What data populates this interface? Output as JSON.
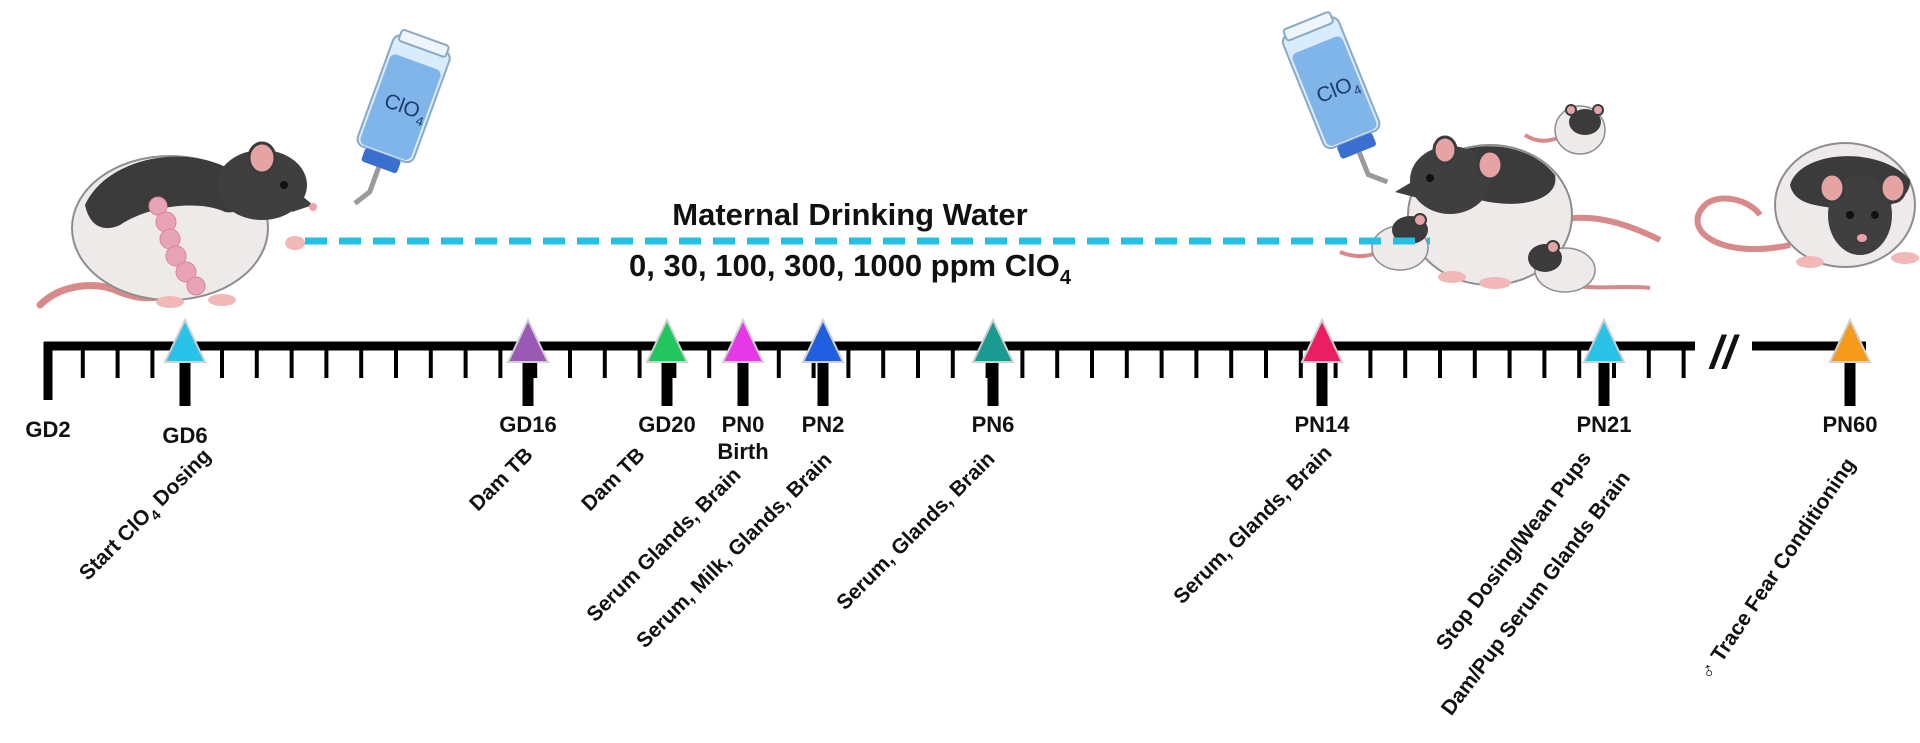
{
  "banner": {
    "title": "Maternal Drinking  Water",
    "doses": "0, 30, 100, 300, 1000 ppm ClO",
    "doses_sub": "4"
  },
  "bottle_label": "ClO",
  "bottle_label_sub": "4",
  "markers": [
    {
      "id": "gd2",
      "day": "GD2",
      "color": null
    },
    {
      "id": "gd6",
      "day": "GD6",
      "color": "#29c3ea"
    },
    {
      "id": "gd16",
      "day": "GD16",
      "color": "#9b59b6"
    },
    {
      "id": "gd20",
      "day": "GD20",
      "color": "#22c55e"
    },
    {
      "id": "pn0",
      "day": "PN0",
      "sub": "Birth",
      "color": "#e639e6"
    },
    {
      "id": "pn2",
      "day": "PN2",
      "color": "#1f5fe0"
    },
    {
      "id": "pn6",
      "day": "PN6",
      "color": "#1a9a91"
    },
    {
      "id": "pn14",
      "day": "PN14",
      "color": "#e91e63"
    },
    {
      "id": "pn21",
      "day": "PN21",
      "color": "#29c3ea"
    },
    {
      "id": "pn60",
      "day": "PN60",
      "color": "#f59a1b"
    }
  ],
  "events": {
    "gd6": "Start ClO",
    "gd6_sub": "4",
    "gd6_tail": " Dosing",
    "gd16": "Dam TB",
    "gd20": "Dam TB",
    "pn0": "Serum  Glands, Brain",
    "pn2": "Serum, Milk, Glands, Brain",
    "pn6": "Serum, Glands, Brain",
    "pn14": "Serum, Glands, Brain",
    "pn21_line1": "Stop Dosing/Wean Pups",
    "pn21_line2": "Dam/Pup Serum Glands Brain",
    "pn60": "♂ Trace  Fear Conditioning"
  },
  "axis_break": "//"
}
